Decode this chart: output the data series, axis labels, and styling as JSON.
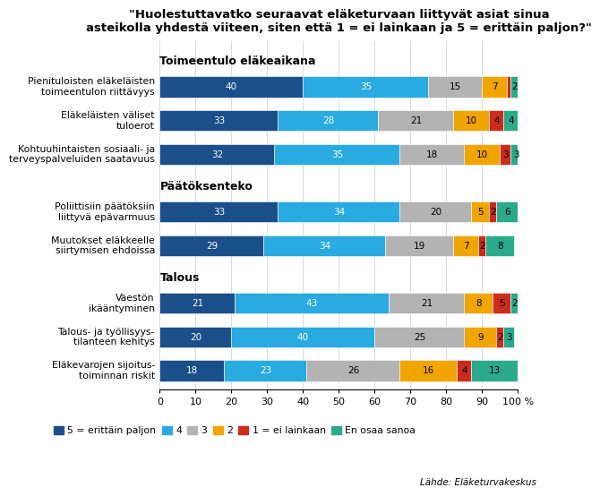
{
  "title": "\"Huolestuttavatko seuraavat eläketurvaan liittyvät asiat sinua\nasteikolla yhdestä viiteen, siten että 1 = ei lainkaan ja 5 = erittäin paljon?\"",
  "bar_cats": [
    "Pienituloisten eläkeläisten\ntoimeentulon riittävyys",
    "Eläkeläisten väliset\ntuloerot",
    "Kohtuuhintaisten sosiaali- ja\nterveyspalveluiden saatavuus",
    "Poliittisiin päätöksiin\nliittyvä epävarmuus",
    "Muutokset eläkkeelle\nsiirtymisen ehdoissa",
    "Väestön\nikääntyminen",
    "Talous- ja työllisyys-\ntilanteen kehitys",
    "Eläkevarojen sijoitus-\ntoiminnan riskit"
  ],
  "values": [
    [
      40,
      35,
      15,
      7,
      1,
      2
    ],
    [
      33,
      28,
      21,
      10,
      4,
      4
    ],
    [
      32,
      35,
      18,
      10,
      3,
      3
    ],
    [
      33,
      34,
      20,
      5,
      2,
      6
    ],
    [
      29,
      34,
      19,
      7,
      2,
      8
    ],
    [
      21,
      43,
      21,
      8,
      5,
      2
    ],
    [
      20,
      40,
      25,
      9,
      2,
      3
    ],
    [
      18,
      23,
      26,
      16,
      4,
      13
    ]
  ],
  "series_labels": [
    "5 = erittäin paljon",
    "4",
    "3",
    "2",
    "1 = ei lainkaan",
    "En osaa sanoa"
  ],
  "colors": [
    "#1a4f8a",
    "#29aae1",
    "#b3b3b3",
    "#f0a500",
    "#cc2b1d",
    "#2aaa8a"
  ],
  "section_headers": [
    "Toimeentulo eläkeaikana",
    "Päätöksenteko",
    "Talous"
  ],
  "footer": "Lähde: Eläketurvakeskus",
  "xticks": [
    0,
    10,
    20,
    30,
    40,
    50,
    60,
    70,
    80,
    90,
    100
  ],
  "text_color_threshold": 2
}
